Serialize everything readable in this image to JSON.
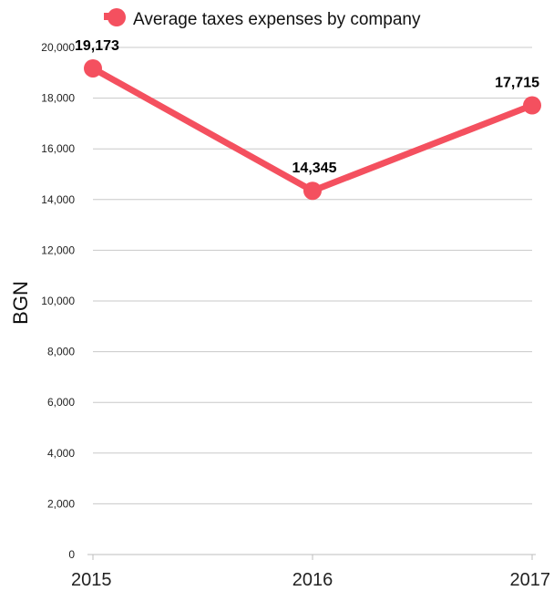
{
  "chart_data": {
    "type": "line",
    "categories": [
      "2015",
      "2016",
      "2017"
    ],
    "series": [
      {
        "name": "Average taxes expenses by company",
        "values": [
          19173,
          14345,
          17715
        ],
        "data_labels": [
          "19,173",
          "14,345",
          "17,715"
        ],
        "color": "#f4505f"
      }
    ],
    "title": "",
    "xlabel": "",
    "ylabel": "BGN",
    "ylim": [
      0,
      20000
    ],
    "yticks": [
      0,
      2000,
      4000,
      6000,
      8000,
      10000,
      12000,
      14000,
      16000,
      18000,
      20000
    ],
    "ytick_labels": [
      "0",
      "2,000",
      "4,000",
      "6,000",
      "8,000",
      "10,000",
      "12,000",
      "14,000",
      "16,000",
      "18,000",
      "20,000"
    ],
    "grid": true,
    "legend_position": "top"
  }
}
